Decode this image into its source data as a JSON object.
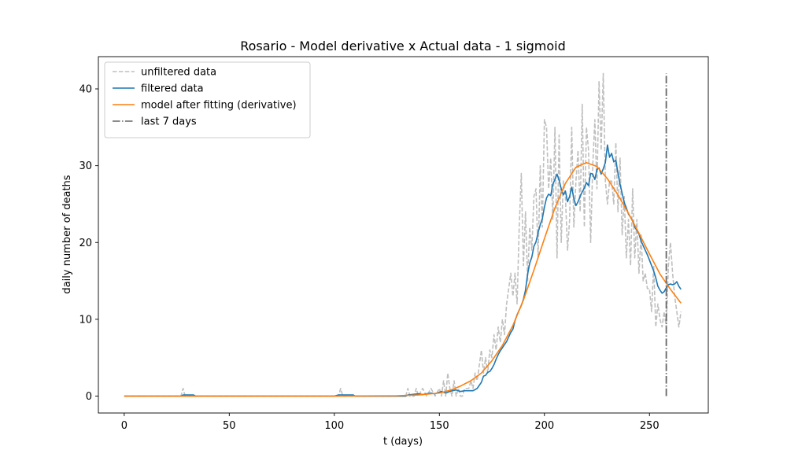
{
  "chart_data": {
    "type": "line",
    "title": "Rosario - Model derivative x Actual data - 1 sigmoid",
    "xlabel": "t (days)",
    "ylabel": "daily number of deaths",
    "xlim": [
      -12.3,
      278
    ],
    "ylim": [
      -2.2,
      44.2
    ],
    "xticks": [
      0,
      50,
      100,
      150,
      200,
      250
    ],
    "yticks": [
      0,
      10,
      20,
      30,
      40
    ],
    "grid": false,
    "legend_position": "top-left",
    "colors": {
      "unfiltered": "#bfbfbf",
      "filtered": "#1f77b4",
      "model": "#ff7f0e",
      "last7": "#666666"
    },
    "series": [
      {
        "name": "unfiltered data",
        "style": "dashed",
        "x": [
          0,
          10,
          20,
          27,
          28,
          29,
          30,
          35,
          40,
          50,
          60,
          70,
          80,
          90,
          100,
          102,
          103,
          104,
          110,
          120,
          130,
          134,
          135,
          136,
          138,
          139,
          140,
          142,
          144,
          146,
          148,
          150,
          151,
          152,
          153,
          154,
          155,
          156,
          157,
          158,
          159,
          160,
          161,
          162,
          163,
          164,
          165,
          166,
          167,
          168,
          169,
          170,
          171,
          172,
          173,
          174,
          175,
          176,
          177,
          178,
          179,
          180,
          181,
          182,
          183,
          184,
          185,
          186,
          187,
          188,
          189,
          190,
          191,
          192,
          193,
          194,
          195,
          196,
          197,
          198,
          199,
          200,
          201,
          202,
          203,
          204,
          205,
          206,
          207,
          208,
          209,
          210,
          211,
          212,
          213,
          214,
          215,
          216,
          217,
          218,
          219,
          220,
          221,
          222,
          223,
          224,
          225,
          226,
          227,
          228,
          229,
          230,
          231,
          232,
          233,
          234,
          235,
          236,
          237,
          238,
          239,
          240,
          241,
          242,
          243,
          244,
          245,
          246,
          247,
          248,
          249,
          250,
          251,
          252,
          253,
          254,
          255,
          256,
          257,
          258,
          259,
          260,
          261,
          262,
          263,
          264,
          265
        ],
        "y": [
          0,
          0,
          0,
          0,
          1,
          0,
          0,
          0,
          0,
          0,
          0,
          0,
          0,
          0,
          0,
          0,
          1,
          0,
          0,
          0,
          0,
          0,
          1,
          0,
          0,
          1,
          0,
          1,
          0,
          1,
          0,
          1,
          0,
          2,
          0,
          3,
          1,
          0,
          2,
          0,
          1,
          0,
          0,
          1,
          1,
          1,
          2,
          1,
          3,
          2,
          4,
          6,
          3,
          5,
          3,
          6,
          5,
          8,
          6,
          9,
          7,
          10,
          8,
          12,
          14,
          16,
          13,
          16,
          12,
          22,
          29,
          17,
          24,
          15,
          22,
          19,
          26,
          27,
          18,
          30,
          22,
          36,
          35,
          27,
          31,
          23,
          35,
          18,
          34,
          20,
          28,
          26,
          19,
          23,
          35,
          22,
          28,
          32,
          24,
          38,
          22,
          35,
          32,
          20,
          30,
          36,
          27,
          41,
          32,
          42,
          28,
          25,
          28,
          28,
          25,
          33,
          24,
          31,
          21,
          26,
          18,
          23,
          17,
          27,
          18,
          23,
          16,
          21,
          15,
          16,
          14,
          14,
          11,
          17,
          9,
          12,
          10,
          9,
          11,
          9,
          17,
          20,
          16,
          13,
          11,
          9,
          11
        ],
        "value_labels": []
      },
      {
        "name": "filtered data",
        "style": "solid",
        "x": [
          0,
          20,
          27,
          28,
          33,
          34,
          40,
          60,
          80,
          100,
          102,
          103,
          109,
          110,
          120,
          130,
          134,
          135,
          140,
          142,
          144,
          146,
          148,
          150,
          151,
          153,
          155,
          156,
          158,
          160,
          162,
          164,
          166,
          168,
          170,
          171,
          172,
          173,
          174,
          175,
          176,
          177,
          178,
          179,
          180,
          181,
          182,
          183,
          184,
          185,
          186,
          187,
          188,
          189,
          190,
          191,
          192,
          193,
          194,
          195,
          196,
          197,
          198,
          199,
          200,
          201,
          202,
          203,
          204,
          205,
          206,
          207,
          208,
          209,
          210,
          211,
          212,
          213,
          214,
          215,
          216,
          217,
          218,
          219,
          220,
          221,
          222,
          223,
          224,
          225,
          226,
          227,
          228,
          229,
          230,
          231,
          232,
          233,
          234,
          235,
          236,
          237,
          238,
          239,
          240,
          241,
          242,
          243,
          244,
          245,
          246,
          247,
          248,
          249,
          250,
          251,
          252,
          253,
          254,
          255,
          256,
          257,
          258,
          259,
          260,
          261,
          262,
          263,
          264,
          265
        ],
        "y": [
          0,
          0,
          0,
          0.15,
          0.15,
          0,
          0,
          0,
          0,
          0,
          0.15,
          0.15,
          0.15,
          0,
          0,
          0,
          0,
          0.15,
          0.3,
          0.2,
          0.3,
          0.4,
          0.3,
          0.5,
          0.6,
          0.4,
          0.6,
          0.7,
          0.8,
          0.6,
          0.7,
          0.7,
          0.7,
          1.0,
          1.8,
          2.6,
          2.7,
          3.1,
          3.2,
          3.6,
          4.1,
          4.8,
          5.4,
          5.9,
          6.3,
          6.7,
          7.1,
          7.7,
          8.3,
          8.7,
          9.8,
          10.6,
          11.2,
          11.8,
          12.6,
          13.8,
          15.9,
          17.3,
          18.1,
          19.5,
          20.1,
          21.3,
          22.3,
          23.1,
          24.6,
          25.8,
          26.3,
          26.1,
          27.6,
          28.2,
          28.9,
          28.1,
          27.0,
          26.2,
          26.7,
          25.3,
          26.0,
          27.2,
          25.7,
          24.8,
          25.3,
          26.0,
          26.6,
          27.1,
          27.8,
          27.4,
          29.0,
          28.9,
          28.2,
          29.5,
          29.7,
          28.9,
          29.6,
          30.4,
          32.7,
          31.1,
          31.6,
          30.5,
          30.7,
          29.0,
          27.6,
          26.4,
          25.2,
          24.5,
          23.7,
          23.3,
          22.8,
          22.0,
          21.6,
          21.1,
          20.2,
          19.6,
          19.0,
          18.4,
          17.7,
          17.0,
          16.3,
          15.4,
          14.3,
          13.8,
          13.4,
          13.6,
          14.1,
          14.5,
          14.6,
          14.5,
          14.6,
          14.9,
          14.3,
          13.9
        ],
        "value_labels": []
      },
      {
        "name": "model after fitting (derivative)",
        "style": "solid",
        "x": [
          0,
          100,
          130,
          140,
          150,
          155,
          160,
          165,
          170,
          175,
          180,
          185,
          190,
          195,
          200,
          205,
          210,
          215,
          220,
          225,
          230,
          235,
          240,
          245,
          250,
          255,
          260,
          265
        ],
        "y": [
          0,
          0,
          0.05,
          0.15,
          0.4,
          0.75,
          1.3,
          2.0,
          3.0,
          4.6,
          6.6,
          9.2,
          12.5,
          16.4,
          20.5,
          24.5,
          27.7,
          29.8,
          30.4,
          29.9,
          28.3,
          26.2,
          23.8,
          21.2,
          18.5,
          15.9,
          13.9,
          12.1
        ],
        "value_labels": []
      },
      {
        "name": "last 7 days",
        "style": "dashdot",
        "x": [
          258,
          258
        ],
        "y": [
          0,
          42
        ],
        "value_labels": []
      }
    ]
  }
}
